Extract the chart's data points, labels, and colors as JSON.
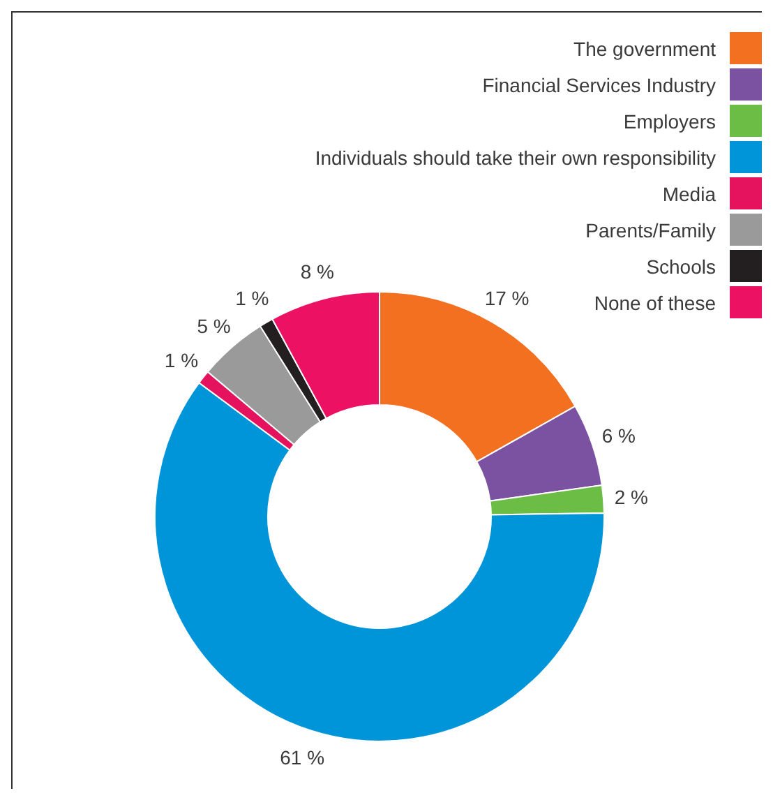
{
  "chart_data": {
    "type": "donut",
    "categories": [
      "The government",
      "Financial Services Industry",
      "Employers",
      "Individuals should take their own responsibility",
      "Media",
      "Parents/Family",
      "Schools",
      "None of these"
    ],
    "values": [
      17,
      6,
      2,
      61,
      1,
      5,
      1,
      8
    ],
    "colors": [
      "#f37021",
      "#7b51a1",
      "#6cbd45",
      "#0095d9",
      "#e5135d",
      "#9a9a9a",
      "#231f20",
      "#ec1163"
    ],
    "value_labels": [
      "17 %",
      "6 %",
      "2 %",
      "61 %",
      "1 %",
      "5 %",
      "1 %",
      "8 %"
    ],
    "legend": "top right"
  }
}
